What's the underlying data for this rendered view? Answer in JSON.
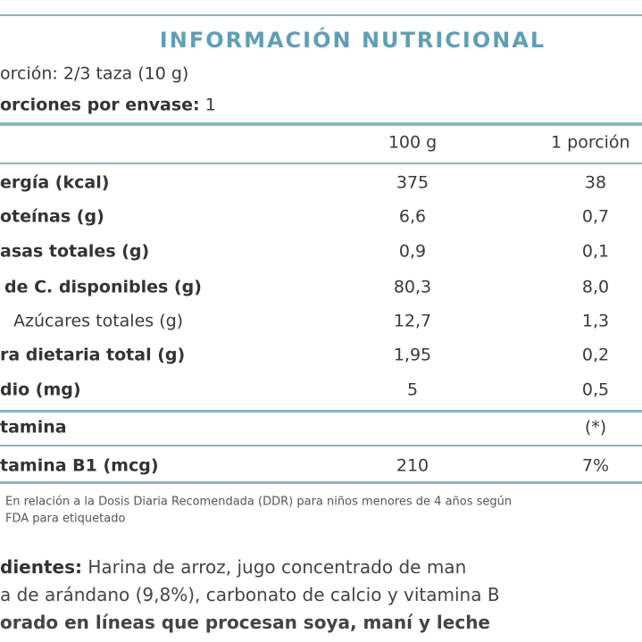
{
  "header": {
    "title": "INFORMACIÓN NUTRICIONAL",
    "serving_size": {
      "label": "orción:",
      "value": "2/3 taza  (10 g)"
    },
    "servings": {
      "label": "orciones por envase:",
      "value": "1"
    }
  },
  "table": {
    "columns": [
      "100 g",
      "1 porción"
    ],
    "rows": [
      [
        "ergía (kcal)",
        "375",
        "38"
      ],
      [
        "oteínas (g)",
        "6,6",
        "0,7"
      ],
      [
        "asas totales (g)",
        "0,9",
        "0,1"
      ],
      [
        "de C. disponibles (g)",
        "80,3",
        "8,0"
      ],
      [
        "Azúcares totales (g)",
        "12,7",
        "1,3"
      ],
      [
        "ra dietaria total (g)",
        "1,95",
        "0,2"
      ],
      [
        "dio (mg)",
        "5",
        "0,5"
      ]
    ],
    "vitamin_header": [
      "tamina",
      "(*)"
    ],
    "vitamin_rows": [
      [
        "tamina B1 (mcg)",
        "210",
        "7%"
      ]
    ]
  },
  "footnote": [
    "En relación a la Dosis Diaria Recomendada (DDR) para niños menores de 4 años según",
    "FDA para etiquetado"
  ],
  "ingredients": {
    "label": "dientes:",
    "lines": [
      "Harina de arroz, jugo concentrado de man",
      "a de arándano (9,8%), carbonato de calcio y vitamina B"
    ],
    "allergens": "orado en líneas que procesan soya, maní y leche"
  }
}
